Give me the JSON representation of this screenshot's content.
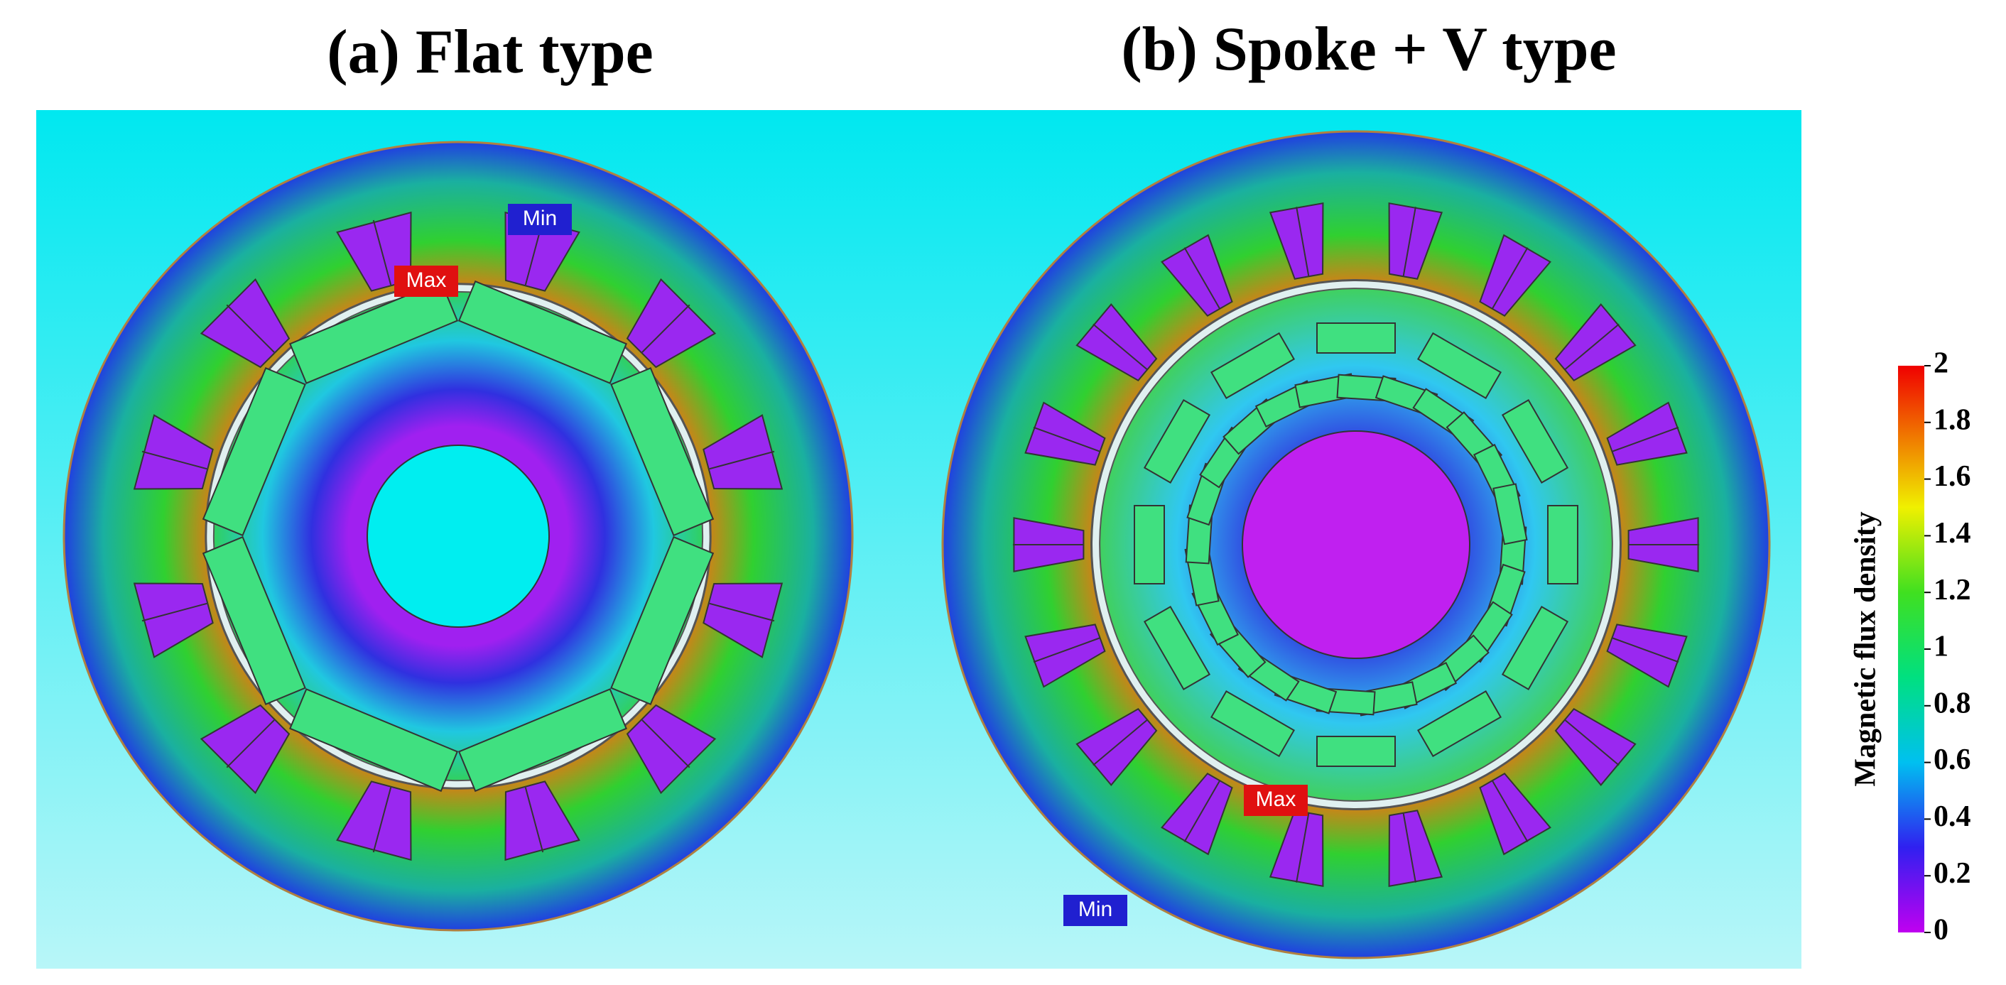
{
  "panels": [
    {
      "title": "(a) Flat type",
      "max_label": "Max",
      "min_label": "Min"
    },
    {
      "title": "(b) Spoke + V type",
      "max_label": "Max",
      "min_label": "Min"
    }
  ],
  "colorbar": {
    "label": "Magnetic flux density",
    "range": [
      0,
      2
    ],
    "ticks": [
      0,
      0.2,
      0.4,
      0.6,
      0.8,
      1,
      1.2,
      1.4,
      1.6,
      1.8,
      2
    ]
  }
}
